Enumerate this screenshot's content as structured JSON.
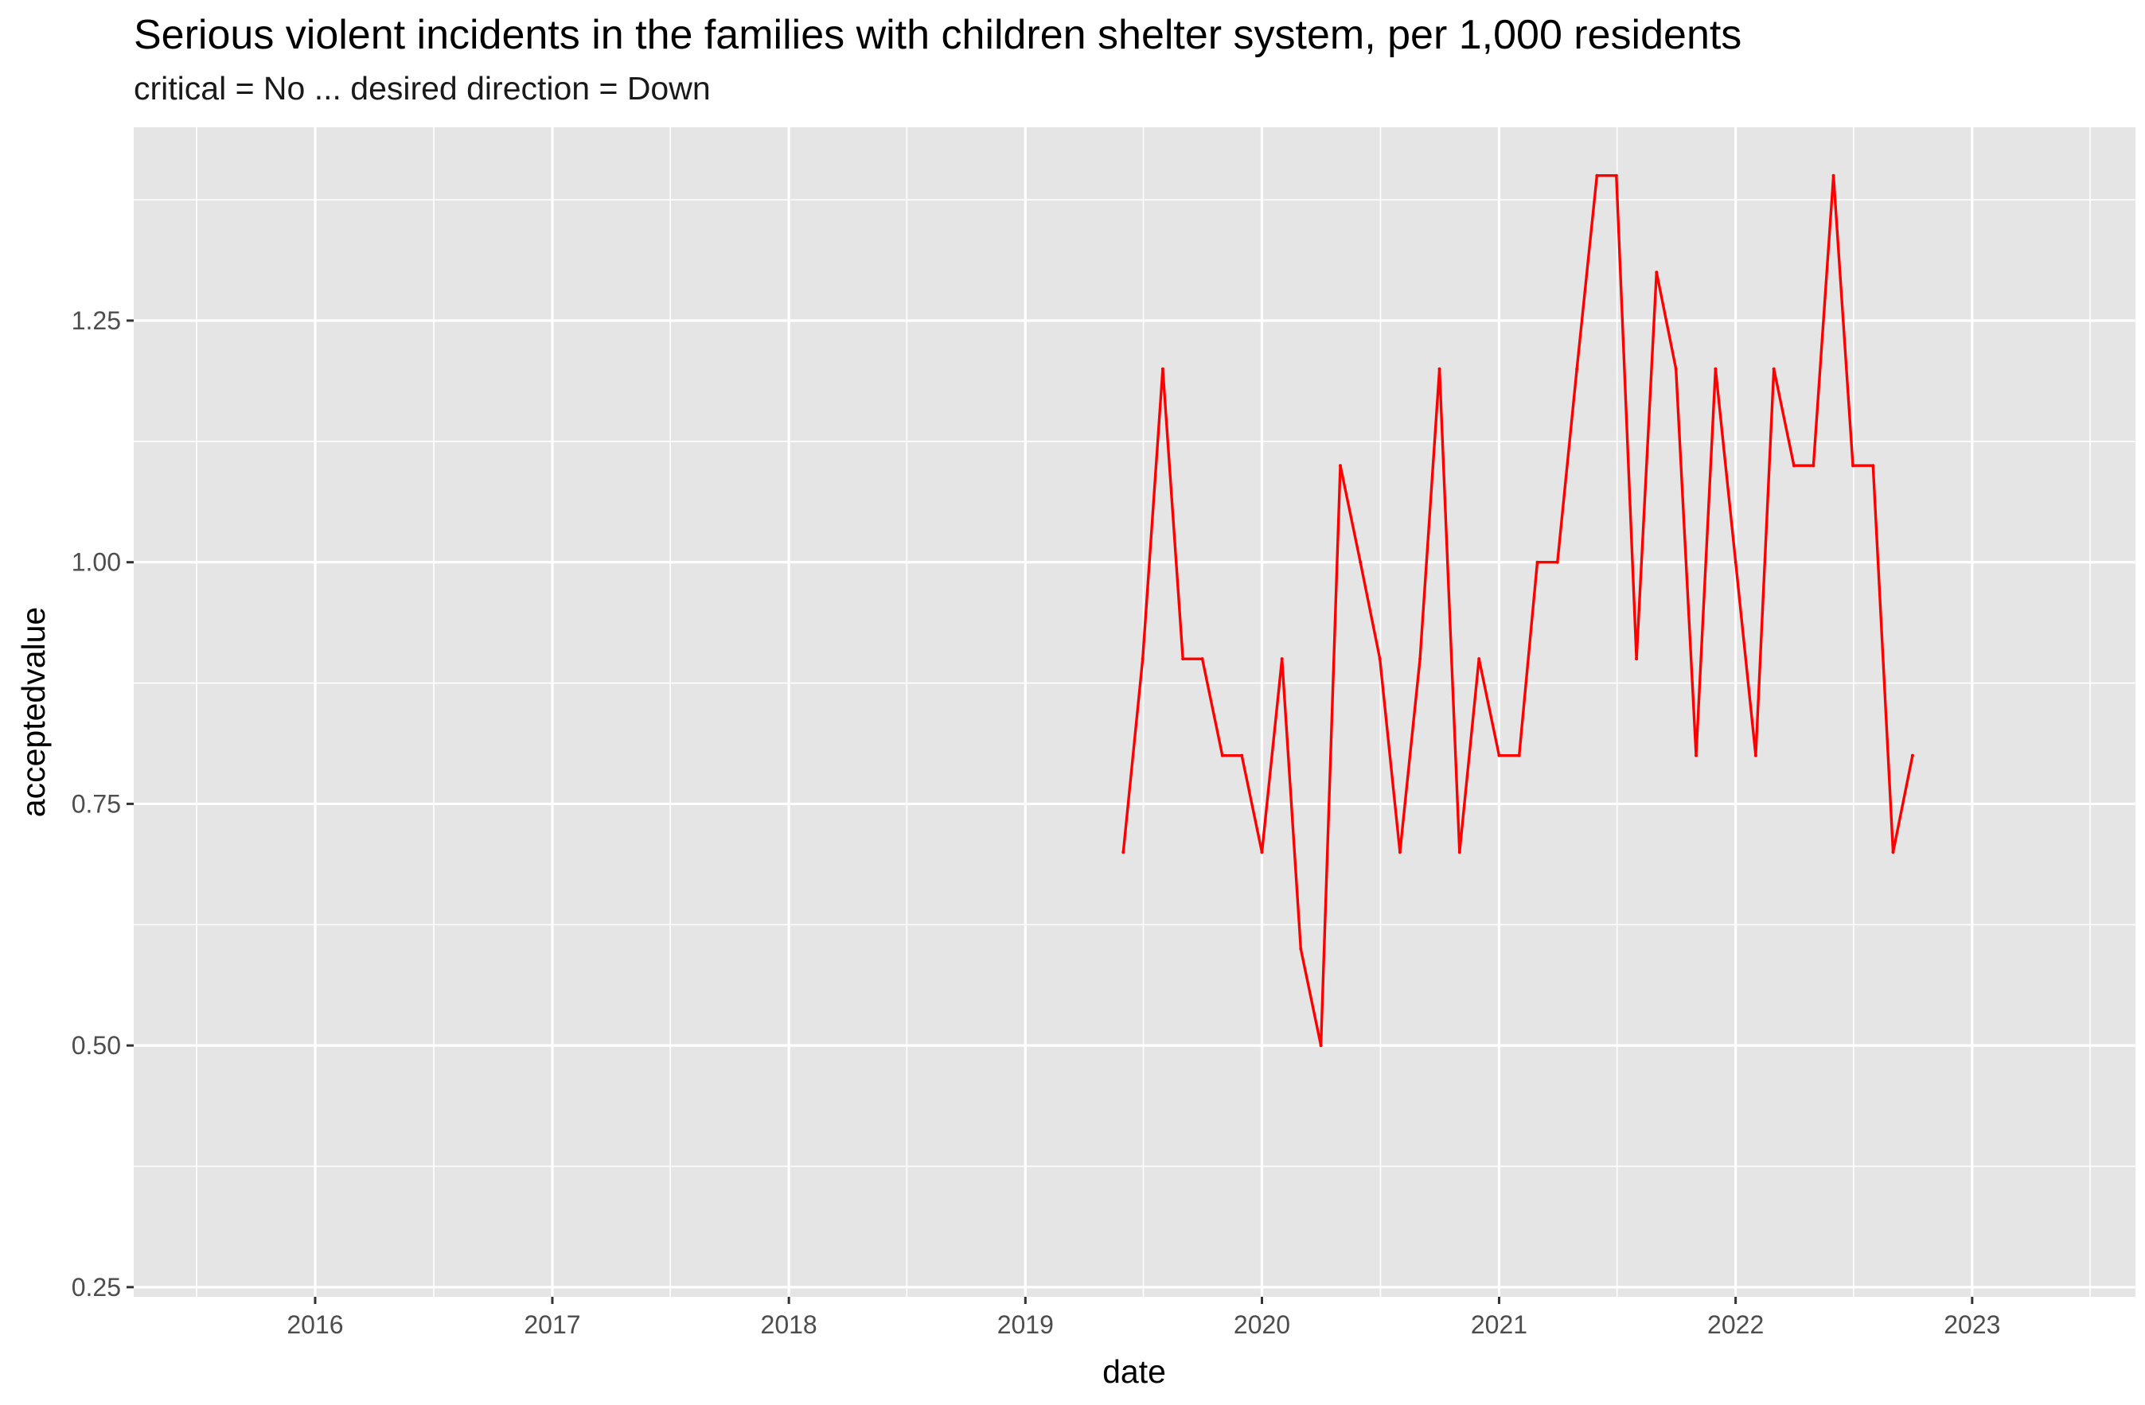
{
  "chart_data": {
    "type": "line",
    "title": "Serious violent incidents in the families with children shelter system, per 1,000 residents",
    "subtitle": "critical = No ... desired direction = Down",
    "xlabel": "date",
    "ylabel": "acceptedvalue",
    "grid": true,
    "xlim": [
      "2015-03-27",
      "2023-09-10"
    ],
    "ylim": [
      0.24,
      1.45
    ],
    "x_ticks": [
      "2016",
      "2017",
      "2018",
      "2019",
      "2020",
      "2021",
      "2022",
      "2023"
    ],
    "y_ticks": [
      "0.25",
      "0.50",
      "0.75",
      "1.00",
      "1.25"
    ],
    "y_tick_values": [
      0.25,
      0.5,
      0.75,
      1.0,
      1.25
    ],
    "line_color": "#ff0000",
    "panel_color": "#e5e5e5",
    "series": [
      {
        "x": [
          "2019-06-01",
          "2019-07-01",
          "2019-08-01",
          "2019-09-01",
          "2019-10-01",
          "2019-11-01",
          "2019-12-01",
          "2020-01-01",
          "2020-02-01",
          "2020-03-01",
          "2020-04-01",
          "2020-05-01",
          "2020-06-01",
          "2020-07-01",
          "2020-08-01",
          "2020-09-01",
          "2020-10-01",
          "2020-11-01",
          "2020-12-01",
          "2021-01-01",
          "2021-02-01",
          "2021-03-01",
          "2021-04-01",
          "2021-05-01",
          "2021-06-01",
          "2021-07-01",
          "2021-08-01",
          "2021-09-01",
          "2021-10-01",
          "2021-11-01",
          "2021-12-01",
          "2022-01-01",
          "2022-02-01",
          "2022-03-01",
          "2022-04-01",
          "2022-05-01",
          "2022-06-01",
          "2022-07-01",
          "2022-08-01",
          "2022-09-01",
          "2022-10-01"
        ],
        "values": [
          0.7,
          0.9,
          1.2,
          0.9,
          0.9,
          0.8,
          0.8,
          0.7,
          0.9,
          0.6,
          0.5,
          1.1,
          1.0,
          0.9,
          0.7,
          0.9,
          1.2,
          0.7,
          0.9,
          0.8,
          0.8,
          1.0,
          1.0,
          1.2,
          1.4,
          1.4,
          0.9,
          1.3,
          1.2,
          0.8,
          1.2,
          1.0,
          0.8,
          1.2,
          1.1,
          1.1,
          1.4,
          1.1,
          1.1,
          0.7,
          0.8
        ]
      }
    ]
  }
}
